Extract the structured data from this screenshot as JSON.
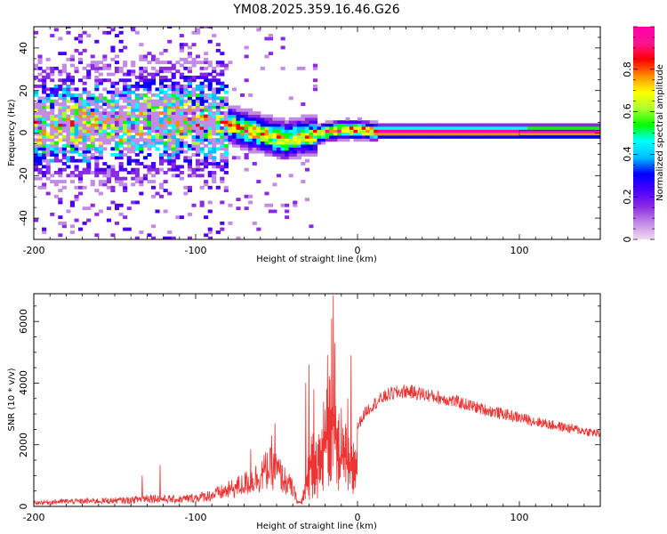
{
  "title": "YM08.2025.359.16.46.G26",
  "chart_data": [
    {
      "type": "heatmap",
      "xlabel": "Height of straight line (km)",
      "ylabel": "Frequency (Hz)",
      "xlim": [
        -200,
        150
      ],
      "ylim": [
        -50,
        50
      ],
      "xticks": [
        -200,
        -100,
        0,
        100
      ],
      "yticks": [
        -40,
        -20,
        0,
        20,
        40
      ],
      "colorbar": {
        "label": "Normalized spectral amplitude",
        "range": [
          0,
          1
        ],
        "ticks": [
          0.0,
          0.2,
          0.4,
          0.6,
          0.8
        ],
        "colormap": [
          "#f2d9f2",
          "#c28ce6",
          "#8a2be2",
          "#4b00ff",
          "#0000ff",
          "#00bfff",
          "#00ffff",
          "#00ff00",
          "#adff2f",
          "#ffff00",
          "#ff8c00",
          "#ff0000",
          "#ff1493",
          "#ff00aa"
        ]
      },
      "ridge": {
        "x": [
          -200,
          -180,
          -160,
          -140,
          -120,
          -100,
          -90,
          -80,
          -70,
          -60,
          -50,
          -45,
          -40,
          -30,
          -20,
          -10,
          0,
          10,
          20,
          50,
          100,
          150
        ],
        "y": [
          3,
          4,
          3,
          4,
          5,
          5,
          5,
          3,
          1,
          -1,
          -3,
          -4,
          -3,
          -2,
          0,
          1,
          1,
          0,
          0,
          0,
          0,
          0
        ]
      }
    },
    {
      "type": "line",
      "xlabel": "Height of straight line (km)",
      "ylabel": "SNR (10 * v/v)",
      "xlim": [
        -200,
        150
      ],
      "ylim": [
        0,
        6900
      ],
      "xticks": [
        -200,
        -100,
        0,
        100
      ],
      "yticks": [
        0,
        2000,
        4000,
        6000
      ],
      "color": "#ee3333",
      "envelope": {
        "x": [
          -200,
          -180,
          -160,
          -140,
          -130,
          -120,
          -110,
          -100,
          -90,
          -80,
          -70,
          -60,
          -55,
          -50,
          -45,
          -40,
          -37,
          -35,
          -32,
          -30,
          -28,
          -25,
          -22,
          -20,
          -18,
          -15,
          -12,
          -10,
          -8,
          -5,
          -2,
          0,
          5,
          10,
          15,
          20,
          30,
          40,
          60,
          80,
          100,
          120,
          150
        ],
        "y": [
          150,
          200,
          220,
          250,
          350,
          300,
          280,
          350,
          450,
          650,
          900,
          1250,
          1550,
          1450,
          1050,
          700,
          180,
          150,
          1000,
          2000,
          2600,
          2200,
          2600,
          3500,
          5200,
          4500,
          3000,
          2600,
          2800,
          2000,
          2200,
          2700,
          3200,
          3450,
          3650,
          3800,
          3900,
          3800,
          3550,
          3250,
          3000,
          2750,
          2450
        ]
      },
      "peaks": {
        "x": [
          -133,
          -122,
          -66,
          -53,
          -51,
          -32,
          -30,
          -27,
          -21,
          -16,
          -15,
          -14,
          -10,
          -6,
          -4
        ],
        "y": [
          1000,
          1350,
          1850,
          2300,
          2700,
          4000,
          4600,
          3800,
          3400,
          6100,
          6850,
          5300,
          3200,
          3500,
          4900
        ]
      }
    }
  ]
}
